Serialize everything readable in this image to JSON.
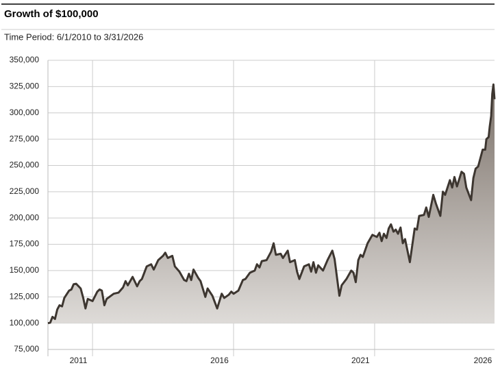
{
  "chart_data": {
    "type": "area",
    "title": "Growth of $100,000",
    "subtitle": "Time Period: 6/1/2010 to 3/31/2026",
    "x": [
      2010.42,
      2010.5,
      2010.58,
      2010.67,
      2010.75,
      2010.83,
      2010.92,
      2011.0,
      2011.17,
      2011.25,
      2011.33,
      2011.42,
      2011.58,
      2011.67,
      2011.75,
      2011.83,
      2012.0,
      2012.17,
      2012.25,
      2012.33,
      2012.42,
      2012.5,
      2012.75,
      2012.92,
      2013.08,
      2013.17,
      2013.25,
      2013.42,
      2013.58,
      2013.67,
      2013.75,
      2013.92,
      2014.08,
      2014.17,
      2014.33,
      2014.5,
      2014.58,
      2014.67,
      2014.83,
      2014.92,
      2015.08,
      2015.25,
      2015.33,
      2015.42,
      2015.5,
      2015.58,
      2015.75,
      2015.83,
      2016.0,
      2016.08,
      2016.25,
      2016.42,
      2016.58,
      2016.67,
      2016.83,
      2016.92,
      2017.0,
      2017.17,
      2017.33,
      2017.42,
      2017.58,
      2017.75,
      2017.83,
      2017.92,
      2018.0,
      2018.17,
      2018.33,
      2018.42,
      2018.5,
      2018.67,
      2018.75,
      2018.92,
      2019.0,
      2019.17,
      2019.25,
      2019.33,
      2019.5,
      2019.67,
      2019.75,
      2019.83,
      2019.92,
      2020.0,
      2020.17,
      2020.33,
      2020.5,
      2020.58,
      2020.75,
      2020.83,
      2021.0,
      2021.17,
      2021.25,
      2021.33,
      2021.42,
      2021.5,
      2021.58,
      2021.75,
      2021.92,
      2022.0,
      2022.08,
      2022.17,
      2022.25,
      2022.33,
      2022.42,
      2022.5,
      2022.58,
      2022.67,
      2022.75,
      2022.83,
      2022.92,
      2023.0,
      2023.08,
      2023.25,
      2023.42,
      2023.5,
      2023.58,
      2023.75,
      2023.83,
      2023.92,
      2024.08,
      2024.17,
      2024.33,
      2024.42,
      2024.5,
      2024.67,
      2024.75,
      2024.83,
      2024.92,
      2025.0,
      2025.08,
      2025.17,
      2025.25,
      2025.42,
      2025.5,
      2025.58,
      2025.67,
      2025.83,
      2025.92,
      2025.96,
      2026.04,
      2026.08,
      2026.13,
      2026.17,
      2026.21,
      2026.25
    ],
    "values": [
      100000,
      100500,
      106000,
      104000,
      113000,
      117000,
      116000,
      124000,
      131000,
      132000,
      137000,
      137500,
      133000,
      124000,
      114000,
      123000,
      121000,
      130000,
      132000,
      131000,
      117000,
      123000,
      128000,
      129000,
      134000,
      140000,
      136000,
      144000,
      135000,
      140000,
      142000,
      154000,
      156000,
      151000,
      160000,
      164000,
      167000,
      162000,
      164000,
      154000,
      149000,
      141000,
      140000,
      147000,
      141000,
      151000,
      143000,
      140000,
      125000,
      133000,
      126000,
      114000,
      128000,
      124000,
      127000,
      130000,
      128000,
      131000,
      141000,
      142000,
      148000,
      150000,
      156000,
      153000,
      159000,
      160000,
      168000,
      176000,
      165000,
      166000,
      162000,
      169000,
      158000,
      160000,
      149000,
      142000,
      154000,
      156000,
      149000,
      158000,
      148000,
      155000,
      150000,
      160000,
      169000,
      161000,
      126000,
      136000,
      142000,
      150000,
      148000,
      139000,
      160000,
      165000,
      163000,
      176000,
      184000,
      183000,
      182000,
      186000,
      178000,
      185000,
      181000,
      190000,
      194000,
      187000,
      189000,
      185000,
      191000,
      176000,
      180000,
      158000,
      190000,
      189000,
      202000,
      203000,
      210000,
      201000,
      222000,
      214000,
      202000,
      225000,
      222000,
      236000,
      229000,
      239000,
      230000,
      237000,
      244000,
      242000,
      229000,
      217000,
      238000,
      247000,
      249000,
      265000,
      265000,
      275000,
      277000,
      287000,
      297000,
      318000,
      327000,
      313000
    ],
    "color": "#3d3630",
    "xlim": [
      2010.42,
      2026.25
    ],
    "xticks": [
      2011,
      2016,
      2021,
      2026
    ],
    "ylim": [
      75000,
      350000
    ],
    "yticks": [
      {
        "value": 75000,
        "label": "75,000"
      },
      {
        "value": 100000,
        "label": "100,000"
      },
      {
        "value": 125000,
        "label": "125,000"
      },
      {
        "value": 150000,
        "label": "150,000"
      },
      {
        "value": 175000,
        "label": "175,000"
      },
      {
        "value": 200000,
        "label": "200,000"
      },
      {
        "value": 225000,
        "label": "225,000"
      },
      {
        "value": 250000,
        "label": "250,000"
      },
      {
        "value": 275000,
        "label": "275,000"
      },
      {
        "value": 300000,
        "label": "300,000"
      },
      {
        "value": 325000,
        "label": "325,000"
      },
      {
        "value": 350000,
        "label": "350,000"
      }
    ],
    "grid": true
  }
}
